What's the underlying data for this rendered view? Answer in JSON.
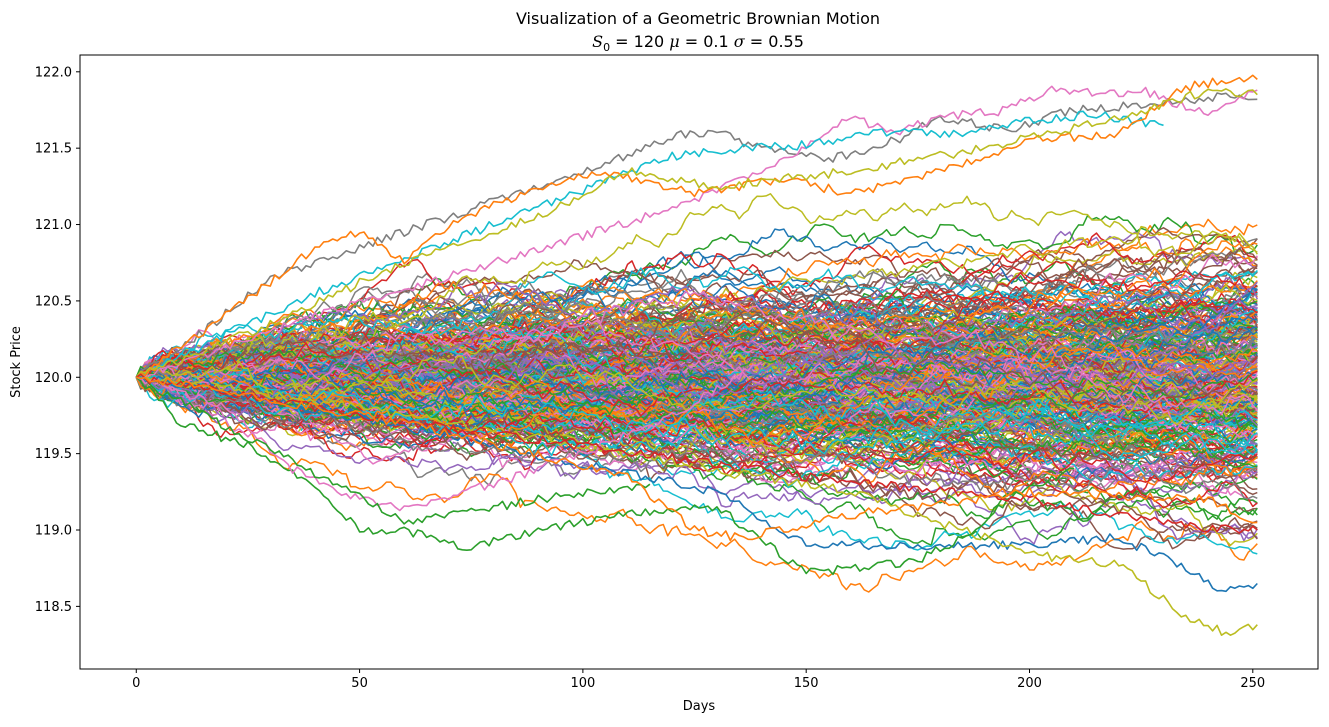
{
  "chart_data": {
    "type": "line",
    "title": "Visualization of a Geometric Brownian Motion",
    "subtitle": {
      "s_sym": "S",
      "s_sub": "0",
      "s_eq": " = 120 ",
      "mu_sym": "μ",
      "mu_eq": " = 0.1 ",
      "sigma_sym": "σ",
      "sigma_eq": " = 0.55"
    },
    "xlabel": "Days",
    "ylabel": "Stock Price",
    "xlim": [
      -12.6,
      264.6
    ],
    "ylim": [
      118.09,
      122.11
    ],
    "xticks": [
      0,
      50,
      100,
      150,
      200,
      250
    ],
    "xtick_labels": [
      "0",
      "50",
      "100",
      "150",
      "200",
      "250"
    ],
    "yticks": [
      118.5,
      119.0,
      119.5,
      120.0,
      120.5,
      121.0,
      121.5,
      122.0
    ],
    "ytick_labels": [
      "118.5",
      "119.0",
      "119.5",
      "120.0",
      "120.5",
      "121.0",
      "121.5",
      "122.0"
    ],
    "grid": false,
    "legend": "none",
    "n_days": 252,
    "color_cycle": [
      "#1f77b4",
      "#ff7f0e",
      "#2ca02c",
      "#d62728",
      "#9467bd",
      "#8c564b",
      "#e377c2",
      "#7f7f7f",
      "#bcbd22",
      "#17becf"
    ],
    "series_note_count": 1000,
    "series": [
      {
        "color": "#1f77b4",
        "keypoints": [
          [
            0,
            120.0
          ],
          [
            30,
            119.85
          ],
          [
            80,
            119.55
          ],
          [
            130,
            119.25
          ],
          [
            150,
            118.9
          ],
          [
            200,
            118.9
          ],
          [
            220,
            118.95
          ],
          [
            235,
            118.75
          ],
          [
            242,
            118.62
          ],
          [
            251,
            118.65
          ]
        ]
      },
      {
        "color": "#bcbd22",
        "keypoints": [
          [
            0,
            120.0
          ],
          [
            40,
            119.85
          ],
          [
            100,
            119.55
          ],
          [
            160,
            119.25
          ],
          [
            190,
            118.95
          ],
          [
            200,
            118.84
          ],
          [
            220,
            118.78
          ],
          [
            230,
            118.55
          ],
          [
            235,
            118.42
          ],
          [
            245,
            118.32
          ],
          [
            251,
            118.38
          ]
        ]
      },
      {
        "color": "#2ca02c",
        "keypoints": [
          [
            0,
            120.0
          ],
          [
            10,
            119.7
          ],
          [
            25,
            119.55
          ],
          [
            40,
            119.3
          ],
          [
            50,
            119.0
          ],
          [
            60,
            119.0
          ],
          [
            75,
            118.88
          ],
          [
            90,
            119.0
          ],
          [
            110,
            119.1
          ],
          [
            130,
            119.15
          ],
          [
            150,
            118.72
          ],
          [
            160,
            118.75
          ],
          [
            175,
            118.8
          ],
          [
            185,
            118.95
          ],
          [
            195,
            119.2
          ],
          [
            210,
            119.4
          ]
        ]
      },
      {
        "color": "#e377c2",
        "keypoints": [
          [
            0,
            120.0
          ],
          [
            20,
            119.8
          ],
          [
            35,
            119.4
          ],
          [
            45,
            119.25
          ],
          [
            60,
            119.15
          ],
          [
            80,
            119.3
          ],
          [
            100,
            119.5
          ],
          [
            120,
            119.75
          ],
          [
            140,
            120.1
          ]
        ]
      },
      {
        "color": "#2ca02c",
        "keypoints": [
          [
            0,
            120.0
          ],
          [
            25,
            119.6
          ],
          [
            45,
            119.3
          ],
          [
            60,
            119.05
          ],
          [
            80,
            119.15
          ],
          [
            100,
            119.25
          ],
          [
            115,
            119.3
          ]
        ]
      },
      {
        "color": "#7f7f7f",
        "keypoints": [
          [
            0,
            120.0
          ],
          [
            15,
            120.3
          ],
          [
            30,
            120.65
          ],
          [
            50,
            120.85
          ],
          [
            70,
            121.05
          ],
          [
            90,
            121.25
          ],
          [
            110,
            121.45
          ],
          [
            120,
            121.58
          ],
          [
            130,
            121.6
          ],
          [
            140,
            121.5
          ],
          [
            155,
            121.42
          ],
          [
            170,
            121.55
          ],
          [
            180,
            121.7
          ],
          [
            195,
            121.62
          ],
          [
            210,
            121.75
          ],
          [
            230,
            121.8
          ],
          [
            245,
            121.85
          ],
          [
            251,
            121.82
          ]
        ]
      },
      {
        "color": "#e377c2",
        "keypoints": [
          [
            0,
            120.0
          ],
          [
            40,
            120.4
          ],
          [
            80,
            120.75
          ],
          [
            120,
            121.1
          ],
          [
            150,
            121.5
          ],
          [
            160,
            121.7
          ],
          [
            170,
            121.6
          ],
          [
            180,
            121.7
          ],
          [
            195,
            121.75
          ],
          [
            205,
            121.9
          ],
          [
            215,
            121.85
          ],
          [
            225,
            121.88
          ],
          [
            240,
            121.72
          ],
          [
            251,
            121.88
          ]
        ]
      },
      {
        "color": "#17becf",
        "keypoints": [
          [
            0,
            120.0
          ],
          [
            40,
            120.55
          ],
          [
            80,
            121.0
          ],
          [
            120,
            121.45
          ],
          [
            135,
            121.5
          ],
          [
            150,
            121.52
          ],
          [
            165,
            121.6
          ],
          [
            185,
            121.6
          ],
          [
            200,
            121.68
          ],
          [
            215,
            121.72
          ],
          [
            230,
            121.65
          ]
        ]
      },
      {
        "color": "#ff7f0e",
        "keypoints": [
          [
            0,
            120.0
          ],
          [
            20,
            120.4
          ],
          [
            40,
            120.85
          ],
          [
            50,
            120.95
          ],
          [
            60,
            120.75
          ],
          [
            70,
            121.0
          ],
          [
            90,
            121.25
          ],
          [
            105,
            121.35
          ],
          [
            125,
            121.2
          ],
          [
            145,
            121.3
          ],
          [
            160,
            121.2
          ],
          [
            180,
            121.35
          ],
          [
            200,
            121.55
          ],
          [
            220,
            121.6
          ],
          [
            235,
            121.9
          ],
          [
            245,
            121.95
          ],
          [
            251,
            121.95
          ]
        ]
      },
      {
        "color": "#bcbd22",
        "keypoints": [
          [
            0,
            120.0
          ],
          [
            30,
            120.35
          ],
          [
            60,
            120.75
          ],
          [
            90,
            121.05
          ],
          [
            110,
            121.35
          ],
          [
            130,
            121.25
          ],
          [
            160,
            121.35
          ],
          [
            190,
            121.5
          ],
          [
            220,
            121.7
          ],
          [
            240,
            121.88
          ],
          [
            251,
            121.85
          ]
        ]
      },
      {
        "color": "#d62728",
        "keypoints": [
          [
            0,
            120.0
          ],
          [
            50,
            119.75
          ],
          [
            100,
            119.55
          ],
          [
            150,
            119.35
          ],
          [
            200,
            119.2
          ],
          [
            230,
            119.05
          ],
          [
            245,
            119.0
          ],
          [
            251,
            119.0
          ]
        ]
      },
      {
        "color": "#ff7f0e",
        "keypoints": [
          [
            0,
            120.0
          ],
          [
            60,
            119.7
          ],
          [
            110,
            119.35
          ],
          [
            125,
            119.0
          ],
          [
            135,
            118.95
          ],
          [
            160,
            119.1
          ],
          [
            200,
            119.25
          ],
          [
            240,
            119.2
          ],
          [
            251,
            119.05
          ]
        ]
      }
    ]
  }
}
